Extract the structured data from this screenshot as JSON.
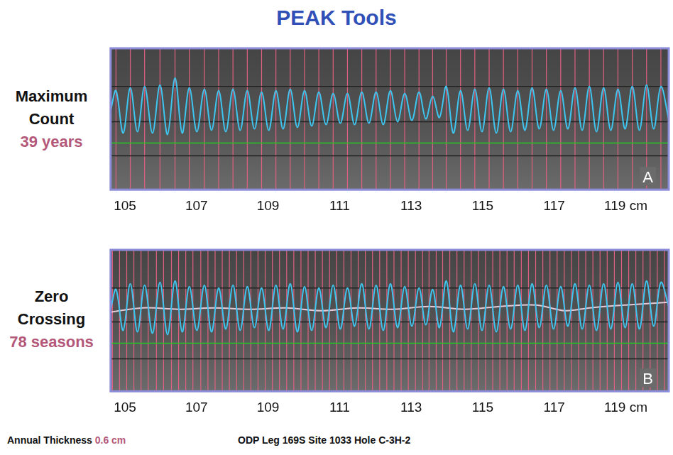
{
  "title": "PEAK Tools",
  "footer": {
    "label": "Annual Thickness",
    "value": "0.6 cm",
    "source": "ODP Leg 169S Site 1033 Hole C-3H-2"
  },
  "chart_data": [
    {
      "type": "line",
      "title": "Maximum Count",
      "subtitle": "39 years",
      "panel_label": "A",
      "xlim": [
        104.6,
        120.2
      ],
      "xticks": [
        105,
        107,
        109,
        111,
        113,
        115,
        117,
        {
          "value": 119,
          "label": "119 cm"
        }
      ],
      "ylim": [
        0,
        10
      ],
      "tick_labels": "x",
      "grid": false,
      "series": [
        {
          "color": "#3ec5f0",
          "x": [
            104.6,
            104.75,
            104.95,
            105.15,
            105.35,
            105.55,
            105.77,
            105.98,
            106.19,
            106.4,
            106.6,
            106.8,
            107.01,
            107.22,
            107.42,
            107.62,
            107.82,
            108.02,
            108.22,
            108.42,
            108.62,
            108.82,
            109.02,
            109.22,
            109.42,
            109.62,
            109.82,
            110.02,
            110.22,
            110.42,
            110.62,
            110.82,
            111.02,
            111.22,
            111.42,
            111.62,
            111.82,
            112.02,
            112.22,
            112.42,
            112.62,
            112.82,
            113.02,
            113.22,
            113.41,
            113.6,
            113.79,
            113.98,
            114.18,
            114.38,
            114.58,
            114.78,
            114.98,
            115.18,
            115.38,
            115.58,
            115.78,
            115.98,
            116.18,
            116.38,
            116.58,
            116.78,
            116.98,
            117.18,
            117.38,
            117.58,
            117.78,
            117.98,
            118.18,
            118.38,
            118.58,
            118.78,
            118.98,
            119.18,
            119.38,
            119.58,
            119.78,
            119.98,
            120.2
          ],
          "values": [
            5.6,
            7.0,
            4.0,
            7.2,
            4.1,
            7.3,
            4.0,
            7.4,
            3.9,
            7.9,
            4.0,
            7.2,
            4.1,
            7.1,
            4.2,
            7.0,
            4.1,
            7.1,
            4.2,
            7.0,
            4.3,
            6.9,
            4.2,
            7.0,
            4.3,
            7.1,
            4.4,
            7.0,
            4.5,
            6.9,
            4.6,
            6.8,
            4.7,
            6.8,
            4.6,
            6.9,
            4.7,
            6.9,
            4.6,
            7.0,
            4.8,
            6.8,
            4.9,
            6.9,
            5.0,
            6.6,
            5.1,
            7.3,
            4.0,
            7.0,
            4.2,
            7.1,
            4.1,
            7.2,
            4.0,
            7.1,
            4.1,
            7.0,
            4.2,
            7.2,
            4.3,
            7.1,
            4.2,
            7.0,
            4.3,
            7.2,
            4.2,
            7.3,
            4.1,
            7.2,
            4.2,
            7.1,
            4.3,
            7.3,
            4.2,
            7.4,
            4.3,
            7.3,
            5.0
          ]
        }
      ],
      "reference_lines": [
        {
          "value": 7.3,
          "color": "#222222"
        },
        {
          "value": 4.8,
          "color": "#222222"
        },
        {
          "value": 3.3,
          "color": "#22cc22"
        },
        {
          "value": 2.4,
          "color": "#222222"
        }
      ],
      "vertical_lines": {
        "color": "#e0607f",
        "x": [
          104.75,
          105.15,
          105.55,
          105.98,
          106.4,
          106.8,
          107.22,
          107.62,
          108.02,
          108.42,
          108.82,
          109.22,
          109.62,
          110.02,
          110.42,
          110.82,
          111.22,
          111.62,
          112.02,
          112.42,
          112.82,
          113.22,
          113.6,
          113.98,
          114.38,
          114.78,
          115.18,
          115.58,
          115.98,
          116.38,
          116.78,
          117.18,
          117.58,
          117.98,
          118.38,
          118.78,
          119.18,
          119.58,
          119.98
        ]
      }
    },
    {
      "type": "line",
      "title": "Zero Crossing",
      "subtitle": "78 seasons",
      "panel_label": "B",
      "xlim": [
        104.6,
        120.2
      ],
      "xticks": [
        105,
        107,
        109,
        111,
        113,
        115,
        117,
        {
          "value": 119,
          "label": "119 cm"
        }
      ],
      "ylim": [
        0,
        10
      ],
      "tick_labels": "x",
      "grid": false,
      "series": [
        {
          "color": "#3ec5f0",
          "x": [
            104.6,
            104.75,
            104.95,
            105.15,
            105.35,
            105.55,
            105.77,
            105.98,
            106.19,
            106.4,
            106.6,
            106.8,
            107.01,
            107.22,
            107.42,
            107.62,
            107.82,
            108.02,
            108.22,
            108.42,
            108.62,
            108.82,
            109.02,
            109.22,
            109.42,
            109.62,
            109.82,
            110.02,
            110.22,
            110.42,
            110.62,
            110.82,
            111.02,
            111.22,
            111.42,
            111.62,
            111.82,
            112.02,
            112.22,
            112.42,
            112.62,
            112.82,
            113.02,
            113.22,
            113.41,
            113.6,
            113.79,
            113.98,
            114.18,
            114.38,
            114.58,
            114.78,
            114.98,
            115.18,
            115.38,
            115.58,
            115.78,
            115.98,
            116.18,
            116.38,
            116.58,
            116.78,
            116.98,
            117.18,
            117.38,
            117.58,
            117.78,
            117.98,
            118.18,
            118.38,
            118.58,
            118.78,
            118.98,
            119.18,
            119.38,
            119.58,
            119.78,
            119.98,
            120.2
          ],
          "values": [
            5.8,
            7.2,
            4.3,
            7.6,
            4.2,
            7.5,
            4.1,
            7.7,
            4.0,
            7.8,
            4.2,
            7.4,
            4.3,
            7.5,
            4.2,
            7.3,
            4.4,
            7.5,
            4.3,
            7.4,
            4.5,
            7.3,
            4.3,
            7.5,
            4.4,
            7.6,
            4.2,
            7.4,
            4.3,
            7.3,
            4.5,
            7.5,
            4.4,
            7.3,
            4.6,
            7.6,
            4.4,
            7.5,
            4.3,
            7.6,
            4.5,
            7.4,
            4.6,
            7.3,
            4.7,
            7.2,
            4.5,
            7.8,
            4.2,
            7.5,
            4.4,
            7.6,
            4.3,
            7.5,
            4.2,
            7.4,
            4.4,
            7.5,
            4.3,
            7.6,
            4.5,
            7.5,
            4.4,
            7.4,
            4.6,
            7.6,
            4.4,
            7.5,
            4.3,
            7.6,
            4.4,
            7.7,
            4.5,
            7.6,
            4.4,
            7.8,
            4.6,
            7.7,
            6.0
          ]
        },
        {
          "color": "#e6c8d8",
          "x": [
            104.6,
            105.5,
            106.5,
            107.5,
            108.5,
            109.5,
            110.5,
            111.5,
            112.5,
            113.5,
            114.5,
            115.5,
            116.5,
            117.3,
            118.0,
            119.0,
            120.2
          ],
          "values": [
            5.6,
            5.9,
            5.8,
            5.9,
            5.8,
            5.9,
            5.7,
            5.9,
            5.8,
            6.0,
            5.8,
            6.0,
            6.1,
            5.7,
            5.9,
            6.1,
            6.3
          ]
        }
      ],
      "reference_lines": [
        {
          "value": 7.3,
          "color": "#222222"
        },
        {
          "value": 4.9,
          "color": "#222222"
        },
        {
          "value": 3.4,
          "color": "#22cc22"
        },
        {
          "value": 2.3,
          "color": "#222222"
        }
      ],
      "vertical_lines": {
        "color": "#e0607f",
        "x": [
          104.65,
          104.85,
          105.05,
          105.25,
          105.45,
          105.65,
          105.88,
          106.08,
          106.3,
          106.5,
          106.7,
          106.9,
          107.12,
          107.32,
          107.52,
          107.72,
          107.92,
          108.12,
          108.32,
          108.52,
          108.72,
          108.92,
          109.12,
          109.32,
          109.52,
          109.72,
          109.92,
          110.12,
          110.32,
          110.52,
          110.72,
          110.92,
          111.12,
          111.32,
          111.52,
          111.72,
          111.92,
          112.12,
          112.32,
          112.52,
          112.72,
          112.92,
          113.12,
          113.32,
          113.5,
          113.7,
          113.88,
          114.08,
          114.28,
          114.48,
          114.68,
          114.88,
          115.08,
          115.28,
          115.48,
          115.68,
          115.88,
          116.08,
          116.28,
          116.48,
          116.68,
          116.88,
          117.08,
          117.28,
          117.48,
          117.68,
          117.88,
          118.08,
          118.28,
          118.48,
          118.68,
          118.88,
          119.08,
          119.28,
          119.48,
          119.68,
          119.88,
          120.08
        ]
      }
    }
  ]
}
